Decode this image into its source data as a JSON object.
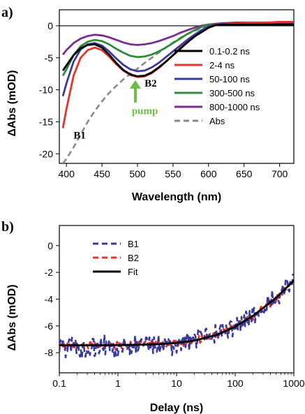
{
  "chart_data": [
    {
      "type": "line",
      "panel_label": "a)",
      "title": "",
      "xlabel": "Wavelength (nm)",
      "ylabel": "ΔAbs (mOD)",
      "xlim": [
        390,
        720
      ],
      "ylim": [
        -21.5,
        2.5
      ],
      "xticks": [
        400,
        450,
        500,
        550,
        600,
        650,
        700
      ],
      "yticks": [
        0,
        -5,
        -10,
        -15,
        -20
      ],
      "zero_line": true,
      "legend_position": "right",
      "series": [
        {
          "name": "0.1-0.2 ns",
          "color": "#000000",
          "dash": "solid",
          "x": [
            395,
            400,
            410,
            420,
            430,
            440,
            450,
            460,
            470,
            480,
            490,
            500,
            510,
            520,
            530,
            540,
            550,
            560,
            570,
            580,
            590,
            600,
            610,
            620,
            640,
            660,
            680,
            700,
            720
          ],
          "y": [
            -7.0,
            -6.2,
            -4.6,
            -3.5,
            -3.0,
            -2.9,
            -3.4,
            -4.5,
            -5.8,
            -6.9,
            -7.6,
            -7.9,
            -7.8,
            -7.3,
            -6.5,
            -5.6,
            -4.6,
            -3.6,
            -2.6,
            -1.7,
            -1.0,
            -0.3,
            0.1,
            0.2,
            0.2,
            0.2,
            0.2,
            0.2,
            0.2
          ]
        },
        {
          "name": "2-4 ns",
          "color": "#e8332b",
          "dash": "solid",
          "x": [
            395,
            400,
            410,
            420,
            430,
            440,
            450,
            460,
            470,
            480,
            490,
            500,
            510,
            520,
            530,
            540,
            550,
            560,
            570,
            580,
            590,
            600,
            610,
            620,
            640,
            660,
            680,
            700,
            720
          ],
          "y": [
            -16.0,
            -13.0,
            -7.8,
            -5.0,
            -3.8,
            -3.4,
            -3.8,
            -4.8,
            -6.0,
            -7.0,
            -7.7,
            -8.0,
            -7.9,
            -7.4,
            -6.6,
            -5.6,
            -4.6,
            -3.5,
            -2.6,
            -1.7,
            -1.0,
            -0.3,
            0.2,
            0.3,
            0.4,
            0.5,
            0.5,
            0.6,
            0.6
          ]
        },
        {
          "name": "50-100 ns",
          "color": "#3a3a9c",
          "dash": "solid",
          "x": [
            395,
            400,
            410,
            420,
            430,
            440,
            450,
            460,
            470,
            480,
            490,
            500,
            510,
            520,
            530,
            540,
            550,
            560,
            570,
            580,
            590,
            600,
            610,
            620,
            640,
            660,
            680,
            700,
            720
          ],
          "y": [
            -11.0,
            -9.0,
            -5.6,
            -3.7,
            -2.9,
            -2.7,
            -3.1,
            -4.0,
            -5.1,
            -6.1,
            -6.8,
            -7.1,
            -7.0,
            -6.5,
            -5.8,
            -4.9,
            -4.0,
            -3.1,
            -2.2,
            -1.4,
            -0.7,
            -0.1,
            0.3,
            0.4,
            0.5,
            0.5,
            0.5,
            0.5,
            0.5
          ]
        },
        {
          "name": "300-500 ns",
          "color": "#2e8b3e",
          "dash": "solid",
          "x": [
            395,
            400,
            410,
            420,
            430,
            440,
            450,
            460,
            470,
            480,
            490,
            500,
            510,
            520,
            530,
            540,
            550,
            560,
            570,
            580,
            590,
            600,
            610,
            620,
            640,
            660,
            680,
            700,
            720
          ],
          "y": [
            -7.8,
            -6.8,
            -4.6,
            -3.2,
            -2.5,
            -2.2,
            -2.4,
            -2.9,
            -3.6,
            -4.2,
            -4.7,
            -4.9,
            -4.8,
            -4.5,
            -4.0,
            -3.4,
            -2.7,
            -2.0,
            -1.3,
            -0.7,
            -0.2,
            0.2,
            0.3,
            0.4,
            0.4,
            0.4,
            0.4,
            0.4,
            0.4
          ]
        },
        {
          "name": "800-1000 ns",
          "color": "#7b2c8f",
          "dash": "solid",
          "x": [
            395,
            400,
            410,
            420,
            430,
            440,
            450,
            460,
            470,
            480,
            490,
            500,
            510,
            520,
            530,
            540,
            550,
            560,
            570,
            580,
            590,
            600,
            610,
            620,
            640,
            660,
            680,
            700,
            720
          ],
          "y": [
            -4.5,
            -3.8,
            -2.7,
            -2.0,
            -1.6,
            -1.4,
            -1.5,
            -1.8,
            -2.2,
            -2.6,
            -2.9,
            -3.0,
            -2.9,
            -2.7,
            -2.4,
            -2.0,
            -1.6,
            -1.1,
            -0.7,
            -0.3,
            0.0,
            0.2,
            0.3,
            0.3,
            0.3,
            0.3,
            0.3,
            0.3,
            0.3
          ]
        },
        {
          "name": "Abs",
          "color": "#8a8a8a",
          "dash": "dashed",
          "x": [
            395,
            400,
            410,
            420,
            430,
            440,
            450,
            460,
            470,
            480,
            490,
            500,
            510,
            520,
            530,
            540,
            550,
            560,
            570,
            580,
            590,
            600,
            610,
            620,
            640,
            660,
            680,
            700,
            720
          ],
          "y": [
            -21.5,
            -20.8,
            -19.0,
            -17.0,
            -15.0,
            -13.3,
            -11.8,
            -10.5,
            -9.4,
            -8.4,
            -7.5,
            -6.7,
            -5.8,
            -5.0,
            -4.2,
            -3.4,
            -2.6,
            -1.9,
            -1.3,
            -0.8,
            -0.4,
            -0.1,
            0.1,
            0.2,
            0.3,
            0.3,
            0.3,
            0.3,
            0.3
          ]
        }
      ],
      "annotations": [
        {
          "text": "B1",
          "x": 410,
          "y": -17.6
        },
        {
          "text": "B2",
          "x": 510,
          "y": -9.5
        },
        {
          "text": "pump",
          "x": 492,
          "y": -13.8,
          "color": "#6abf45"
        }
      ],
      "pump_arrow": {
        "x": 497,
        "y_from": -12.0,
        "y_to": -8.5,
        "color": "#6abf45"
      }
    },
    {
      "type": "line",
      "panel_label": "b)",
      "title": "",
      "xlabel": "Delay (ns)",
      "ylabel": "ΔAbs (mOD)",
      "xscale": "log",
      "xlim": [
        0.1,
        1000
      ],
      "ylim": [
        -9.5,
        1.5
      ],
      "xticks": [
        0.1,
        1,
        10,
        100,
        1000
      ],
      "xtick_labels": [
        "0.1",
        "1",
        "10",
        "100",
        "1000"
      ],
      "yticks": [
        0,
        -2,
        -4,
        -6,
        -8
      ],
      "legend_position": "top-left",
      "series": [
        {
          "name": "B1",
          "color": "#3a3a9c",
          "dash": "dashed",
          "noise": 0.9,
          "x": [
            0.1,
            0.2,
            0.3,
            0.5,
            0.8,
            1,
            2,
            5,
            10,
            20,
            50,
            100,
            200,
            500,
            1000
          ],
          "y": [
            -7.5,
            -7.6,
            -7.9,
            -7.3,
            -7.5,
            -7.5,
            -7.45,
            -7.4,
            -7.3,
            -7.1,
            -6.6,
            -6.0,
            -5.2,
            -3.9,
            -2.5
          ]
        },
        {
          "name": "B2",
          "color": "#e8332b",
          "dash": "dashed",
          "noise": 0.35,
          "x": [
            0.1,
            0.2,
            0.3,
            0.5,
            0.8,
            1,
            2,
            5,
            10,
            20,
            50,
            100,
            200,
            500,
            1000
          ],
          "y": [
            -7.5,
            -7.5,
            -7.4,
            -7.5,
            -7.45,
            -7.45,
            -7.4,
            -7.35,
            -7.25,
            -7.05,
            -6.6,
            -6.05,
            -5.3,
            -4.0,
            -2.8
          ]
        },
        {
          "name": "Fit",
          "color": "#000000",
          "dash": "solid",
          "noise": 0,
          "x": [
            0.1,
            0.2,
            0.5,
            1,
            2,
            5,
            10,
            20,
            50,
            100,
            200,
            500,
            1000
          ],
          "y": [
            -7.45,
            -7.45,
            -7.44,
            -7.43,
            -7.41,
            -7.36,
            -7.27,
            -7.1,
            -6.65,
            -6.05,
            -5.25,
            -3.9,
            -2.6
          ]
        }
      ]
    }
  ]
}
